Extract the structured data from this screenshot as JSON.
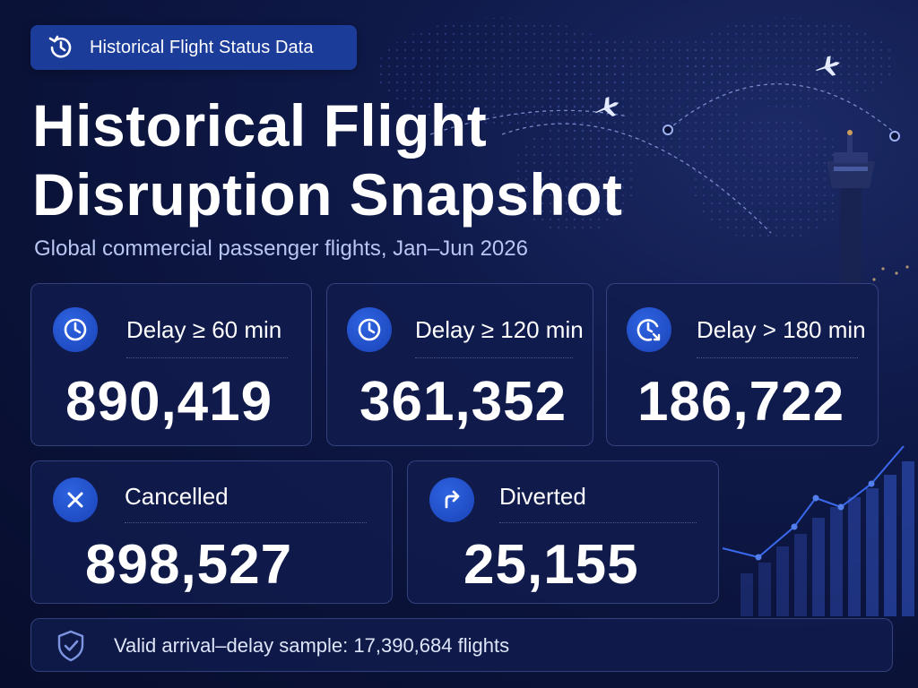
{
  "badge": {
    "label": "Historical Flight Status Data",
    "icon": "history-clock-icon"
  },
  "title": {
    "line1": "Historical Flight",
    "line2": "Disruption Snapshot"
  },
  "subtitle": "Global commercial passenger flights, Jan–Jun 2026",
  "cards": [
    {
      "label": "Delay ≥ 60 min",
      "value": "890,419",
      "icon": "clock-icon"
    },
    {
      "label": "Delay ≥ 120 min",
      "value": "361,352",
      "icon": "clock-icon"
    },
    {
      "label": "Delay > 180 min",
      "value": "186,722",
      "icon": "clock-arrow-icon"
    },
    {
      "label": "Cancelled",
      "value": "898,527",
      "icon": "x-icon"
    },
    {
      "label": "Diverted",
      "value": "25,155",
      "icon": "turn-right-arrow-icon"
    }
  ],
  "footer": {
    "text": "Valid arrival–delay sample: 17,390,684 flights",
    "icon": "shield-check-icon"
  },
  "colors": {
    "background": "#0a1238",
    "accent": "#2456d6",
    "card": "#111c4e",
    "subtitle": "#b9c6f2"
  }
}
